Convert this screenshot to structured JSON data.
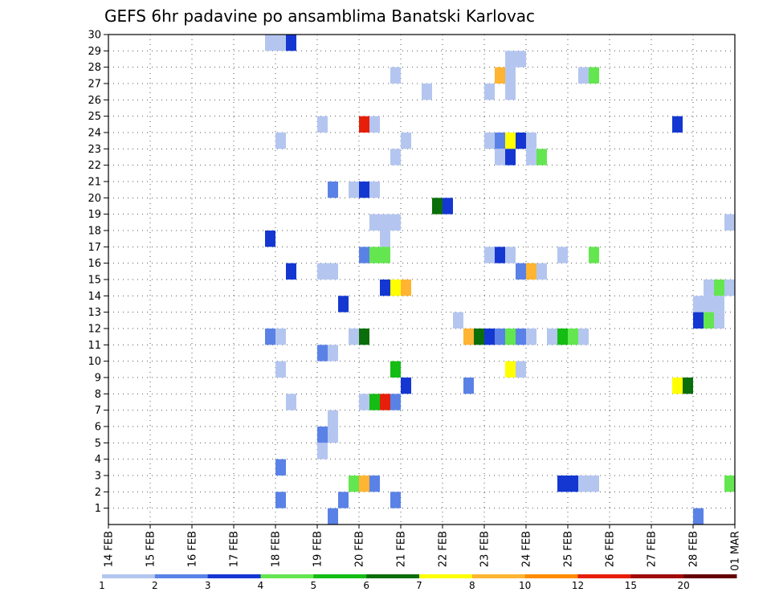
{
  "chart_data": {
    "type": "heatmap",
    "title": "GEFS 6hr padavine po ansamblima Banatski Karlovac",
    "x_tick_labels": [
      "14 FEB",
      "15 FEB",
      "16 FEB",
      "17 FEB",
      "18 FEB",
      "19 FEB",
      "20 FEB",
      "21 FEB",
      "22 FEB",
      "23 FEB",
      "24 FEB",
      "25 FEB",
      "26 FEB",
      "27 FEB",
      "28 FEB",
      "01 MAR"
    ],
    "x_unit": "6-hour step",
    "x_range": [
      0,
      60
    ],
    "y_tick_labels": [
      "1",
      "2",
      "3",
      "4",
      "5",
      "6",
      "7",
      "8",
      "9",
      "10",
      "11",
      "12",
      "13",
      "14",
      "15",
      "16",
      "17",
      "18",
      "19",
      "20",
      "21",
      "22",
      "23",
      "24",
      "25",
      "26",
      "27",
      "28",
      "29",
      "30"
    ],
    "y_range": [
      0,
      30
    ],
    "grid": true,
    "colorbar": {
      "labels": [
        "1",
        "2",
        "3",
        "4",
        "5",
        "6",
        "7",
        "8",
        "10",
        "12",
        "15",
        "20"
      ],
      "colors": [
        "#b4c6f0",
        "#5a82e6",
        "#1437d2",
        "#64e650",
        "#14bc14",
        "#0a6e0a",
        "#ffff00",
        "#ffb432",
        "#ff8c00",
        "#e61e0a",
        "#a00a0a",
        "#640000"
      ]
    },
    "cells": [
      [
        15,
        30,
        1
      ],
      [
        16,
        30,
        1
      ],
      [
        17,
        30,
        3
      ],
      [
        38,
        29,
        1
      ],
      [
        39,
        29,
        1
      ],
      [
        27,
        28,
        1
      ],
      [
        37,
        28,
        8
      ],
      [
        38,
        28,
        1
      ],
      [
        45,
        28,
        1
      ],
      [
        46,
        28,
        4
      ],
      [
        30,
        27,
        1
      ],
      [
        36,
        27,
        1
      ],
      [
        38,
        27,
        1
      ],
      [
        20,
        25,
        1
      ],
      [
        24,
        25,
        10
      ],
      [
        25,
        25,
        1
      ],
      [
        54,
        25,
        3
      ],
      [
        16,
        24,
        1
      ],
      [
        28,
        24,
        1
      ],
      [
        36,
        24,
        1
      ],
      [
        37,
        24,
        2
      ],
      [
        38,
        24,
        7
      ],
      [
        39,
        24,
        3
      ],
      [
        40,
        24,
        1
      ],
      [
        27,
        23,
        1
      ],
      [
        37,
        23,
        1
      ],
      [
        38,
        23,
        3
      ],
      [
        40,
        23,
        1
      ],
      [
        41,
        23,
        4
      ],
      [
        21,
        21,
        2
      ],
      [
        23,
        21,
        1
      ],
      [
        24,
        21,
        3
      ],
      [
        25,
        21,
        1
      ],
      [
        31,
        20,
        6
      ],
      [
        32,
        20,
        3
      ],
      [
        25,
        19,
        1
      ],
      [
        26,
        19,
        1
      ],
      [
        27,
        19,
        1
      ],
      [
        59,
        19,
        1
      ],
      [
        15,
        18,
        3
      ],
      [
        26,
        18,
        1
      ],
      [
        24,
        17,
        2
      ],
      [
        25,
        17,
        4
      ],
      [
        26,
        17,
        4
      ],
      [
        36,
        17,
        1
      ],
      [
        37,
        17,
        3
      ],
      [
        38,
        17,
        1
      ],
      [
        43,
        17,
        1
      ],
      [
        46,
        17,
        4
      ],
      [
        17,
        16,
        3
      ],
      [
        20,
        16,
        1
      ],
      [
        21,
        16,
        1
      ],
      [
        39,
        16,
        2
      ],
      [
        40,
        16,
        8
      ],
      [
        41,
        16,
        1
      ],
      [
        26,
        15,
        3
      ],
      [
        27,
        15,
        7
      ],
      [
        28,
        15,
        8
      ],
      [
        57,
        15,
        1
      ],
      [
        58,
        15,
        4
      ],
      [
        59,
        15,
        1
      ],
      [
        22,
        14,
        3
      ],
      [
        56,
        14,
        1
      ],
      [
        57,
        14,
        1
      ],
      [
        58,
        14,
        1
      ],
      [
        33,
        13,
        1
      ],
      [
        56,
        13,
        3
      ],
      [
        57,
        13,
        4
      ],
      [
        58,
        13,
        1
      ],
      [
        15,
        12,
        2
      ],
      [
        16,
        12,
        1
      ],
      [
        23,
        12,
        1
      ],
      [
        24,
        12,
        6
      ],
      [
        34,
        12,
        8
      ],
      [
        35,
        12,
        6
      ],
      [
        36,
        12,
        3
      ],
      [
        37,
        12,
        2
      ],
      [
        38,
        12,
        4
      ],
      [
        39,
        12,
        2
      ],
      [
        40,
        12,
        1
      ],
      [
        42,
        12,
        1
      ],
      [
        43,
        12,
        5
      ],
      [
        44,
        12,
        4
      ],
      [
        45,
        12,
        1
      ],
      [
        20,
        11,
        2
      ],
      [
        21,
        11,
        1
      ],
      [
        16,
        10,
        1
      ],
      [
        27,
        10,
        5
      ],
      [
        38,
        10,
        7
      ],
      [
        39,
        10,
        1
      ],
      [
        28,
        9,
        3
      ],
      [
        34,
        9,
        2
      ],
      [
        54,
        9,
        7
      ],
      [
        55,
        9,
        6
      ],
      [
        17,
        8,
        1
      ],
      [
        24,
        8,
        1
      ],
      [
        25,
        8,
        5
      ],
      [
        26,
        8,
        10
      ],
      [
        27,
        8,
        2
      ],
      [
        21,
        7,
        1
      ],
      [
        20,
        6,
        2
      ],
      [
        21,
        6,
        1
      ],
      [
        20,
        5,
        1
      ],
      [
        16,
        4,
        2
      ],
      [
        23,
        3,
        4
      ],
      [
        24,
        3,
        8
      ],
      [
        25,
        3,
        2
      ],
      [
        43,
        3,
        3
      ],
      [
        44,
        3,
        3
      ],
      [
        45,
        3,
        1
      ],
      [
        46,
        3,
        1
      ],
      [
        59,
        3,
        4
      ],
      [
        16,
        2,
        2
      ],
      [
        22,
        2,
        2
      ],
      [
        27,
        2,
        2
      ],
      [
        21,
        1,
        2
      ],
      [
        56,
        1,
        2
      ]
    ]
  }
}
